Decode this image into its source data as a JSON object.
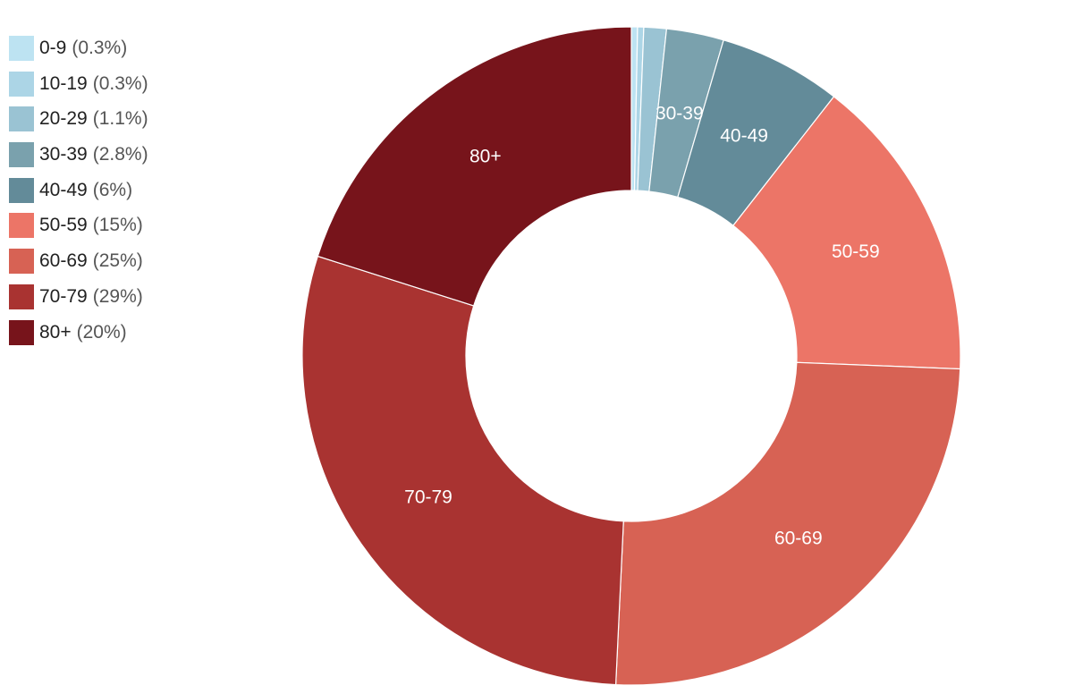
{
  "chart_data": {
    "type": "pie",
    "variant": "donut",
    "legend_placement": "top-left",
    "categories": [
      "0-9",
      "10-19",
      "20-29",
      "30-39",
      "40-49",
      "50-59",
      "60-69",
      "70-79",
      "80+"
    ],
    "values": [
      0.3,
      0.3,
      1.1,
      2.8,
      6,
      15,
      25,
      29,
      20
    ],
    "percent_labels": [
      "(0.3%)",
      "(0.3%)",
      "(1.1%)",
      "(2.8%)",
      "(6%)",
      "(15%)",
      "(25%)",
      "(29%)",
      "(20%)"
    ],
    "slice_labels": [
      "",
      "",
      "",
      "30-39",
      "40-49",
      "50-59",
      "60-69",
      "70-79",
      "80+"
    ],
    "colors": [
      "#bde3f2",
      "#acd5e6",
      "#9ac3d3",
      "#7aa1ad",
      "#638b99",
      "#ec7567",
      "#d76254",
      "#a93331",
      "#77141b"
    ]
  }
}
